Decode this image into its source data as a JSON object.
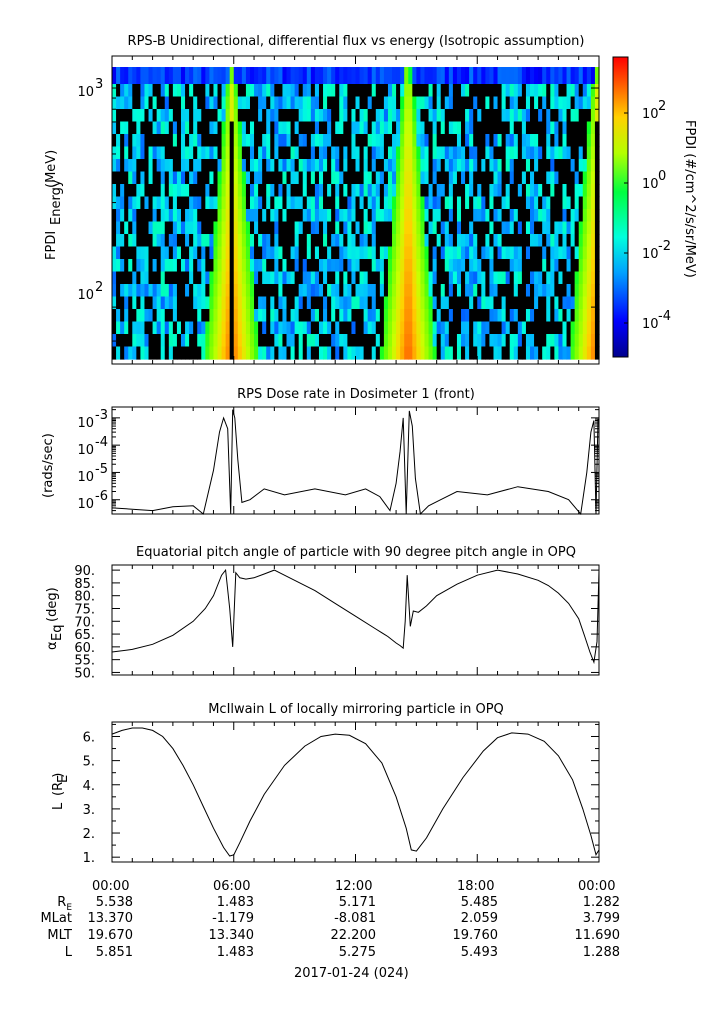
{
  "chart_data": [
    {
      "type": "heatmap",
      "title": "RPS-B  Unidirectional, differential flux vs energy (Isotropic assumption)",
      "ylabel": "FPDI",
      "ylabel_sub": "Energy",
      "ylabel_unit": "(MeV)",
      "yscale": "log",
      "ylim": [
        55,
        1400
      ],
      "y_ticks": [
        "10^3",
        "10^2"
      ],
      "y_tick_values": [
        1000,
        100
      ],
      "colorbar": {
        "label": "FPDI (#/cm^2/s/sr/MeV)",
        "scale": "log",
        "range": [
          1e-05,
          2000
        ],
        "ticks": [
          "10^2",
          "10^0",
          "10^-2",
          "10^-4"
        ],
        "tick_values": [
          100,
          1,
          0.01,
          0.0001
        ]
      },
      "xlim_hours": [
        0,
        24
      ],
      "high_flux_times_hours": [
        5.9,
        14.6,
        23.9
      ]
    },
    {
      "type": "line",
      "title": "RPS  Dose rate in Dosimeter 1 (front)",
      "ylabel": "(rads/sec)",
      "yscale": "log",
      "ylim": [
        3e-07,
        0.0025
      ],
      "y_ticks": [
        "10^-3",
        "10^-4",
        "10^-5",
        "10^-6"
      ],
      "y_tick_values": [
        0.001,
        0.0001,
        1e-05,
        1e-06
      ],
      "x_hours": [
        0,
        1,
        2,
        3,
        4,
        4.5,
        5,
        5.3,
        5.5,
        5.7,
        5.85,
        5.95,
        6.05,
        6.2,
        6.4,
        6.8,
        7.5,
        8.5,
        10,
        11.5,
        12.5,
        13.2,
        13.7,
        14,
        14.2,
        14.35,
        14.5,
        14.65,
        14.8,
        14.95,
        15.2,
        15.6,
        16.2,
        17,
        18.5,
        20,
        21.5,
        22.5,
        23.1,
        23.4,
        23.6,
        23.75,
        23.85,
        23.95
      ],
      "values": [
        5e-07,
        4.5e-07,
        4e-07,
        5.5e-07,
        6e-07,
        3e-07,
        1.2e-05,
        0.0003,
        0.001,
        0.0004,
        3e-07,
        0.002,
        0.001,
        3e-05,
        8e-07,
        1e-06,
        2.5e-06,
        1.5e-06,
        2.5e-06,
        1.5e-06,
        2.5e-06,
        1.3e-06,
        4e-07,
        4e-06,
        6e-05,
        0.001,
        3e-07,
        0.0018,
        0.0005,
        6e-06,
        3e-07,
        6e-07,
        1e-06,
        2e-06,
        1.5e-06,
        3e-06,
        2e-06,
        1e-06,
        3e-07,
        1e-05,
        0.0003,
        0.0008,
        3e-07,
        0.0009
      ]
    },
    {
      "type": "line",
      "title": "Equatorial pitch angle of particle with 90 degree pitch angle in OPQ",
      "ylabel": "α",
      "ylabel_sub": "Eq",
      "ylabel_unit": "(deg)",
      "ylim": [
        49,
        92
      ],
      "y_ticks": [
        90,
        85,
        80,
        75,
        70,
        65,
        60,
        55,
        50
      ],
      "x_hours": [
        0,
        1,
        2,
        3,
        4,
        4.6,
        5,
        5.2,
        5.4,
        5.6,
        5.8,
        5.95,
        6.1,
        6.3,
        6.6,
        7,
        7.5,
        8,
        9,
        10,
        11,
        12,
        13,
        13.6,
        14,
        14.2,
        14.35,
        14.45,
        14.55,
        14.7,
        14.85,
        15.1,
        15.5,
        16,
        17,
        18,
        19,
        20,
        21,
        21.5,
        22,
        22.5,
        23,
        23.3,
        23.55,
        23.75,
        23.9,
        24
      ],
      "values": [
        58,
        59,
        61,
        64.5,
        70,
        75,
        80,
        84,
        88,
        90,
        75,
        60,
        89,
        87,
        86.5,
        87,
        88.5,
        90,
        86,
        82,
        77,
        72,
        67,
        64,
        61.5,
        60.5,
        59.5,
        70,
        88,
        68,
        74,
        73.5,
        76,
        80,
        84.5,
        88,
        90,
        88.5,
        86,
        84,
        81,
        77,
        71,
        64,
        58,
        54,
        62,
        90
      ]
    },
    {
      "type": "line",
      "title": "McIlwain L of locally mirroring particle in OPQ",
      "ylabel": "L",
      "ylabel_sub": "E",
      "ylabel_unit": "(R )",
      "ylim": [
        0.8,
        6.6
      ],
      "y_ticks": [
        6,
        5,
        4,
        3,
        2,
        1
      ],
      "x_hours": [
        0,
        0.5,
        1,
        1.5,
        2,
        2.5,
        3,
        3.5,
        4,
        4.5,
        5,
        5.5,
        5.8,
        6.0,
        6.3,
        6.8,
        7.5,
        8.5,
        9.5,
        10.3,
        11,
        11.7,
        12.5,
        13.3,
        14,
        14.5,
        14.75,
        15,
        15.5,
        16.3,
        17.3,
        18.3,
        19,
        19.7,
        20.5,
        21.3,
        22,
        22.7,
        23.2,
        23.6,
        23.85,
        24
      ],
      "values": [
        6.1,
        6.25,
        6.35,
        6.35,
        6.25,
        6.0,
        5.5,
        4.8,
        4.0,
        3.1,
        2.2,
        1.4,
        1.05,
        1.1,
        1.6,
        2.5,
        3.6,
        4.8,
        5.6,
        6.0,
        6.1,
        6.05,
        5.7,
        4.9,
        3.5,
        2.2,
        1.3,
        1.25,
        1.8,
        3.0,
        4.3,
        5.4,
        5.95,
        6.15,
        6.1,
        5.8,
        5.2,
        4.2,
        3.0,
        1.9,
        1.1,
        1.3
      ]
    }
  ],
  "x_axis": {
    "tick_labels": [
      "00:00",
      "06:00",
      "12:00",
      "18:00",
      "00:00"
    ],
    "date_label": "2017-01-24 (024)"
  },
  "ephemeris": {
    "rows": [
      {
        "label": "R",
        "label_sub": "E",
        "values": [
          "5.538",
          "1.483",
          "5.171",
          "5.485",
          "1.282"
        ]
      },
      {
        "label": "MLat",
        "label_sub": "",
        "values": [
          "13.370",
          "-1.179",
          "-8.081",
          "2.059",
          "3.799"
        ]
      },
      {
        "label": "MLT",
        "label_sub": "",
        "values": [
          "19.670",
          "13.340",
          "22.200",
          "19.760",
          "11.690"
        ]
      },
      {
        "label": "L",
        "label_sub": "",
        "values": [
          "5.851",
          "1.483",
          "5.275",
          "5.493",
          "1.288"
        ]
      }
    ]
  },
  "colors": {
    "line": "#000000",
    "background": "#ffffff"
  }
}
